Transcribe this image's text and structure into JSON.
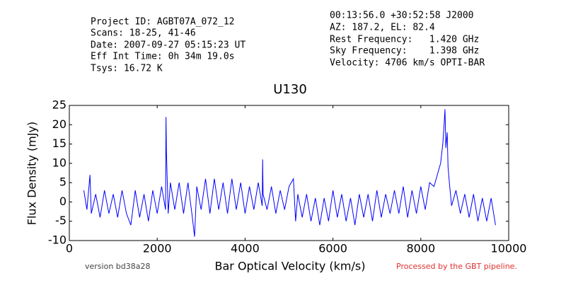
{
  "header": {
    "left": [
      "Project ID: AGBT07A_072_12",
      "Scans: 18-25, 41-46",
      "Date: 2007-09-27 05:15:23 UT",
      "Eff Int Time: 0h 34m 19.0s",
      "Tsys: 16.72 K"
    ],
    "right": [
      "00:13:56.0 +30:52:58 J2000",
      "AZ: 187.2, EL: 82.4",
      "Rest Frequency:   1.420 GHz",
      "Sky Frequency:    1.398 GHz",
      "Velocity: 4706 km/s OPTI-BAR"
    ]
  },
  "footer": {
    "version": "version bd38a28",
    "pipeline": "Processed by the GBT pipeline."
  },
  "chart_data": {
    "type": "line",
    "title": "U130",
    "x_label": "Bar Optical Velocity (km/s)",
    "y_label": "Flux Density (mJy)",
    "xlim": [
      0,
      10000
    ],
    "xticks": [
      0,
      2000,
      4000,
      6000,
      8000,
      10000
    ],
    "ylim": [
      -10,
      25
    ],
    "yticks": [
      -10,
      -5,
      0,
      5,
      10,
      15,
      20,
      25
    ],
    "x": [
      330,
      400,
      470,
      500,
      600,
      700,
      800,
      900,
      1000,
      1100,
      1200,
      1300,
      1400,
      1500,
      1600,
      1700,
      1800,
      1900,
      2000,
      2100,
      2190,
      2200,
      2210,
      2250,
      2300,
      2400,
      2500,
      2600,
      2700,
      2800,
      2850,
      2900,
      3000,
      3100,
      3200,
      3300,
      3400,
      3500,
      3600,
      3700,
      3800,
      3900,
      4000,
      4100,
      4200,
      4300,
      4390,
      4400,
      4410,
      4500,
      4600,
      4700,
      4800,
      4900,
      5000,
      5100,
      5150,
      5200,
      5300,
      5400,
      5500,
      5600,
      5700,
      5800,
      5900,
      6000,
      6100,
      6200,
      6300,
      6400,
      6500,
      6600,
      6700,
      6800,
      6900,
      7000,
      7100,
      7200,
      7300,
      7400,
      7500,
      7600,
      7700,
      7800,
      7900,
      8000,
      8100,
      8200,
      8300,
      8400,
      8450,
      8500,
      8530,
      8550,
      8570,
      8600,
      8620,
      8650,
      8700,
      8800,
      8900,
      9000,
      9100,
      9200,
      9300,
      9400,
      9500,
      9600,
      9700
    ],
    "series": [
      {
        "name": "U130",
        "color": "#0000ff",
        "values": [
          3,
          -2,
          7,
          -3,
          2,
          -4,
          3,
          -3,
          2,
          -4,
          3,
          -3,
          -6,
          3,
          -4,
          2,
          -5,
          3,
          -3,
          4,
          -2,
          22,
          13,
          -3,
          5,
          -2,
          5,
          -3,
          5,
          -4,
          -9,
          4,
          -2,
          6,
          -3,
          6,
          -2,
          5,
          -3,
          6,
          -2,
          5,
          -3,
          4,
          -2,
          5,
          -1,
          11,
          2,
          -2,
          4,
          -3,
          3,
          -2,
          4,
          6,
          -5,
          2,
          -4,
          2,
          -5,
          1,
          -6,
          1,
          -5,
          3,
          -4,
          2,
          -5,
          1,
          -6,
          2,
          -4,
          2,
          -5,
          3,
          -4,
          2,
          -3,
          3,
          -3,
          4,
          -4,
          3,
          -3,
          4,
          -2,
          5,
          4,
          8,
          10,
          15,
          20,
          24,
          14,
          18,
          9,
          5,
          -1,
          3,
          -3,
          2,
          -4,
          2,
          -5,
          1,
          -5,
          1,
          -6
        ]
      }
    ]
  }
}
